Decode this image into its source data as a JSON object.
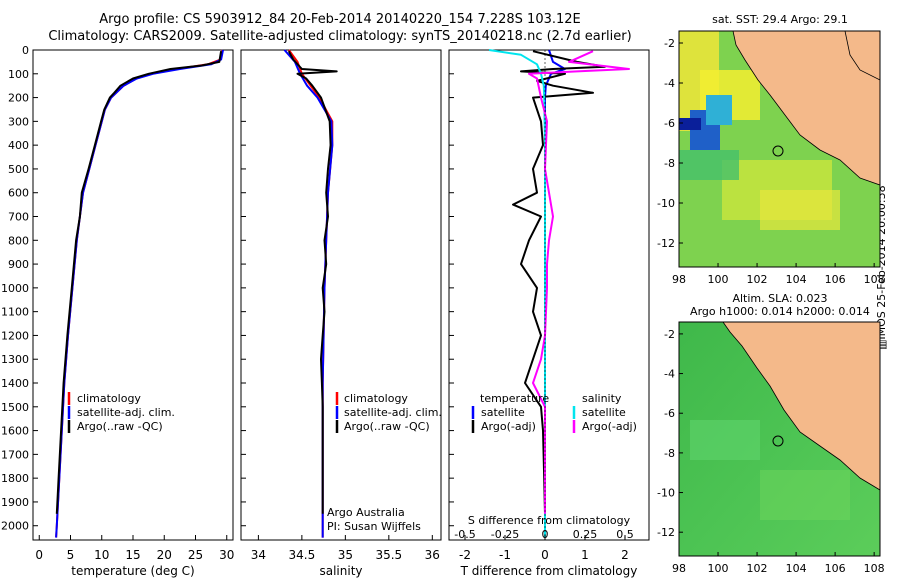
{
  "title_line1": "Argo profile: CS 5903912_84 20-Feb-2014 20140220_154 7.228S 103.12E",
  "title_line2": "Climatology: CARS2009. Satellite-adjusted climatology: synTS_20140218.nc (2.7d earlier)",
  "side_label": "▥IMOS 25-Feb-2014 20:00:58",
  "panel_temperature": {
    "xlabel": "temperature (deg C)",
    "xticks": [
      "0",
      "5",
      "10",
      "15",
      "20",
      "25",
      "30"
    ],
    "legend": [
      "climatology",
      "satellite-adj. clim.",
      "Argo(..raw -QC)"
    ]
  },
  "panel_salinity": {
    "xlabel": "salinity",
    "xticks": [
      "34",
      "34.5",
      "35",
      "35.5",
      "36"
    ],
    "legend": [
      "climatology",
      "satellite-adj. clim.",
      "Argo(..raw -QC)"
    ],
    "note_line1": "Argo Australia",
    "note_line2": "PI: Susan Wijffels"
  },
  "panel_difference": {
    "xlabel": "T difference from climatology",
    "xlabel_top": "S difference from climatology",
    "xticks_t": [
      "-2",
      "-1",
      "0",
      "1",
      "2"
    ],
    "xticks_s": [
      "-0.5",
      "-0.25",
      "0",
      "0.25",
      "0.5"
    ],
    "legend_t_title": "temperature",
    "legend_s_title": "salinity",
    "legend_t": [
      "satellite",
      "Argo(-adj)"
    ],
    "legend_s": [
      "satellite",
      "Argo(-adj)"
    ]
  },
  "depth_ticks": [
    "0",
    "100",
    "200",
    "300",
    "400",
    "500",
    "600",
    "700",
    "800",
    "900",
    "1000",
    "1100",
    "1200",
    "1300",
    "1400",
    "1500",
    "1600",
    "1700",
    "1800",
    "1900",
    "2000"
  ],
  "map_sst": {
    "title": "sat. SST: 29.4  Argo: 29.1",
    "xticks": [
      "98",
      "100",
      "102",
      "104",
      "106",
      "108"
    ],
    "yticks": [
      "-2",
      "-4",
      "-6",
      "-8",
      "-10",
      "-12"
    ]
  },
  "map_sla": {
    "title_line1": "Altim. SLA: 0.023",
    "title_line2": "Argo h1000: 0.014  h2000: 0.014",
    "xticks": [
      "98",
      "100",
      "102",
      "104",
      "106",
      "108"
    ],
    "yticks": [
      "-2",
      "-4",
      "-6",
      "-8",
      "-10",
      "-12"
    ]
  },
  "colors": {
    "climatology": "#ff0000",
    "satellite_adj": "#0000ff",
    "argo": "#000000",
    "sal_satellite": "#00e5ee",
    "sal_argo": "#ff00ff",
    "land": "#f4b98a"
  },
  "chart_data": [
    {
      "type": "line",
      "panel": "temperature",
      "xlabel": "temperature (deg C)",
      "ylabel": "",
      "xlim": [
        -1,
        31
      ],
      "ylim": [
        2060,
        0
      ],
      "series": [
        {
          "name": "climatology",
          "depth": [
            0,
            40,
            60,
            80,
            100,
            120,
            150,
            200,
            250,
            300,
            400,
            500,
            600,
            700,
            800,
            1000,
            1200,
            1400,
            1600,
            1800,
            2000,
            2050
          ],
          "values": [
            29.3,
            29.0,
            27.0,
            22.0,
            18.0,
            15.5,
            13.5,
            11.5,
            10.5,
            10.0,
            9.0,
            8.0,
            7.0,
            6.5,
            6.0,
            5.3,
            4.6,
            4.0,
            3.6,
            3.2,
            2.8,
            2.7
          ]
        },
        {
          "name": "satellite-adj. clim.",
          "depth": [
            0,
            40,
            60,
            80,
            100,
            120,
            150,
            200,
            250,
            300,
            400,
            500,
            600,
            700,
            800,
            1000,
            1200,
            1400,
            1600,
            1800,
            2000,
            2050
          ],
          "values": [
            29.4,
            29.1,
            27.5,
            22.5,
            18.2,
            15.6,
            13.5,
            11.5,
            10.5,
            10.0,
            9.0,
            8.0,
            7.0,
            6.5,
            6.0,
            5.3,
            4.6,
            4.0,
            3.6,
            3.2,
            2.8,
            2.7
          ]
        },
        {
          "name": "Argo(..raw -QC)",
          "depth": [
            5,
            50,
            65,
            80,
            100,
            120,
            150,
            180,
            200,
            250,
            300,
            400,
            500,
            600,
            700,
            800,
            1000,
            1200,
            1400,
            1600,
            1800,
            1950
          ],
          "values": [
            29.1,
            28.8,
            26.0,
            21.0,
            17.5,
            15.0,
            13.0,
            12.0,
            11.3,
            10.4,
            9.9,
            8.9,
            7.9,
            6.8,
            6.5,
            5.9,
            5.2,
            4.5,
            3.9,
            3.5,
            3.1,
            2.8
          ]
        }
      ]
    },
    {
      "type": "line",
      "panel": "salinity",
      "xlabel": "salinity",
      "ylabel": "",
      "xlim": [
        33.8,
        36.1
      ],
      "ylim": [
        2060,
        0
      ],
      "series": [
        {
          "name": "climatology",
          "depth": [
            0,
            50,
            100,
            150,
            200,
            300,
            400,
            600,
            800,
            1000,
            1200,
            1400,
            1600,
            1800,
            2000,
            2050
          ],
          "values": [
            34.35,
            34.45,
            34.5,
            34.6,
            34.7,
            34.85,
            34.85,
            34.8,
            34.78,
            34.76,
            34.75,
            34.74,
            34.74,
            34.74,
            34.74,
            34.74
          ]
        },
        {
          "name": "satellite-adj. clim.",
          "depth": [
            0,
            50,
            100,
            150,
            200,
            300,
            400,
            600,
            800,
            1000,
            1200,
            1400,
            1600,
            1800,
            2000,
            2050
          ],
          "values": [
            34.3,
            34.42,
            34.48,
            34.56,
            34.68,
            34.84,
            34.85,
            34.8,
            34.78,
            34.76,
            34.75,
            34.74,
            34.74,
            34.74,
            34.74,
            34.74
          ]
        },
        {
          "name": "Argo(..raw -QC)",
          "depth": [
            5,
            40,
            80,
            90,
            100,
            120,
            150,
            200,
            300,
            400,
            500,
            600,
            700,
            800,
            900,
            1000,
            1100,
            1200,
            1300,
            1400,
            1500,
            1600,
            1800,
            1950
          ],
          "values": [
            34.35,
            34.4,
            34.5,
            34.9,
            34.45,
            34.55,
            34.62,
            34.72,
            34.82,
            34.83,
            34.8,
            34.78,
            34.8,
            34.76,
            34.78,
            34.74,
            34.76,
            34.74,
            34.72,
            34.73,
            34.74,
            34.74,
            34.74,
            34.74
          ]
        }
      ]
    },
    {
      "type": "line",
      "panel": "difference",
      "xlabel": "T difference from climatology",
      "xlabel_top": "S difference from climatology",
      "ylabel": "",
      "xlim": [
        -2.4,
        2.6
      ],
      "ylim": [
        2060,
        0
      ],
      "series": [
        {
          "name": "temperature satellite",
          "depth": [
            0,
            50,
            80,
            100,
            150,
            200,
            400,
            1000,
            2000,
            2050
          ],
          "values": [
            0.1,
            0.2,
            0.5,
            0.15,
            0.02,
            0.0,
            0.0,
            0.0,
            0.0,
            0.0
          ]
        },
        {
          "name": "temperature Argo(-adj)",
          "depth": [
            5,
            50,
            70,
            80,
            90,
            100,
            130,
            150,
            180,
            200,
            300,
            400,
            500,
            600,
            650,
            700,
            800,
            900,
            1000,
            1100,
            1200,
            1300,
            1400,
            1500,
            1600,
            1800,
            1950
          ],
          "values": [
            -0.3,
            0.8,
            1.5,
            0.2,
            -0.6,
            0.5,
            -0.2,
            0.2,
            1.2,
            -0.3,
            -0.1,
            -0.05,
            -0.3,
            -0.2,
            -0.8,
            -0.1,
            -0.4,
            -0.6,
            -0.2,
            -0.3,
            -0.1,
            -0.3,
            -0.5,
            -0.1,
            -0.05,
            -0.02,
            0.0
          ]
        },
        {
          "name": "salinity satellite",
          "depth": [
            0,
            20,
            60,
            100,
            150,
            200,
            400,
            1000,
            2000,
            2050
          ],
          "values": [
            -1.4,
            -0.6,
            -0.2,
            -0.1,
            -0.03,
            -0.02,
            0.0,
            0.0,
            0.0,
            0.0
          ]
        },
        {
          "name": "salinity Argo(-adj)",
          "depth": [
            5,
            50,
            80,
            90,
            100,
            120,
            200,
            300,
            500,
            600,
            700,
            800,
            900,
            1000,
            1200,
            1300,
            1400,
            1500,
            1600,
            1800,
            1950
          ],
          "values": [
            1.2,
            0.6,
            2.1,
            0.8,
            -0.4,
            -0.2,
            -0.1,
            0.05,
            0.0,
            0.1,
            0.2,
            0.1,
            0.05,
            0.05,
            0.0,
            -0.1,
            -0.3,
            0.0,
            0.0,
            0.0,
            0.0
          ]
        }
      ]
    }
  ]
}
